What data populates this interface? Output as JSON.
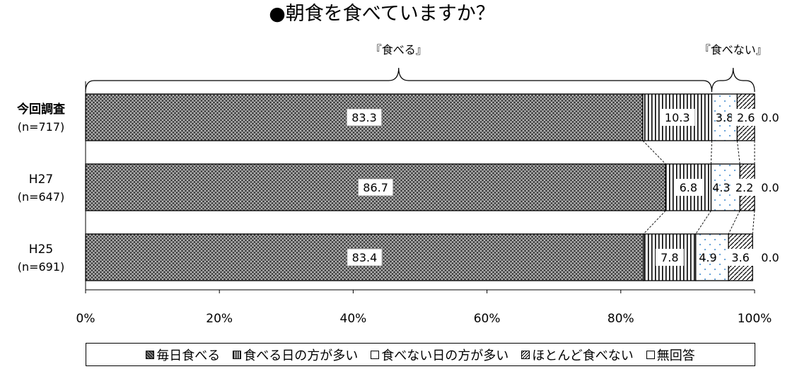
{
  "chart_data": {
    "type": "bar",
    "orientation": "horizontal",
    "stacked": "100%",
    "title": "●朝食を食べていますか？",
    "categories": [
      {
        "name": "今回調査",
        "n": "(n=717)"
      },
      {
        "name": "H27",
        "n": "(n=647)"
      },
      {
        "name": "H25",
        "n": "(n=691)"
      }
    ],
    "series": [
      {
        "name": "毎日食べる",
        "values": [
          83.3,
          86.7,
          83.4
        ],
        "pattern": "crosshatch-dark"
      },
      {
        "name": "食べる日の方が多い",
        "values": [
          10.3,
          6.8,
          7.8
        ],
        "pattern": "vertical-lines"
      },
      {
        "name": "食べない日の方が多い",
        "values": [
          3.8,
          4.3,
          4.9
        ],
        "pattern": "blue-dots"
      },
      {
        "name": "ほとんど食べない",
        "values": [
          2.6,
          2.2,
          3.6
        ],
        "pattern": "diagonal-lines"
      },
      {
        "name": "無回答",
        "values": [
          0.0,
          0.0,
          0.0
        ],
        "pattern": "white"
      }
    ],
    "value_labels": [
      [
        "83.3",
        "10.3",
        "3.8",
        "2.6",
        "0.0"
      ],
      [
        "86.7",
        "6.8",
        "4.3",
        "2.2",
        "0.0"
      ],
      [
        "83.4",
        "7.8",
        "4.9",
        "3.6",
        "0.0"
      ]
    ],
    "xlim": [
      0,
      100
    ],
    "x_ticks": [
      "0%",
      "20%",
      "40%",
      "60%",
      "80%",
      "100%"
    ],
    "grid": false,
    "legend_position": "bottom",
    "brackets": [
      {
        "label": "『食べる』",
        "range": [
          0,
          93.6
        ]
      },
      {
        "label": "『食べない』",
        "range": [
          93.6,
          100
        ]
      }
    ],
    "colors": {
      "dark": "#3a3a3a",
      "dots": "#5b9bd5",
      "line": "#000000"
    }
  }
}
